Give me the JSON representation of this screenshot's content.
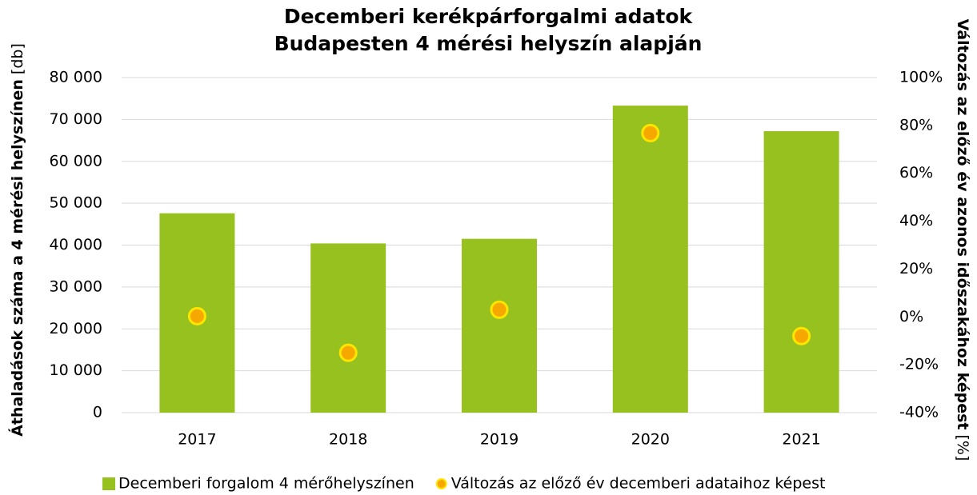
{
  "chart_data": {
    "type": "bar",
    "title": [
      "Decemberi kerékpárforgalmi adatok",
      "Budapesten 4 mérési helyszín alapján"
    ],
    "y_label": "Áthaladások száma a 4 mérési helyszínen",
    "y_label_unit": "[db]",
    "y2_label": "Változás az előző év azonos időszakához képest",
    "y2_label_unit": "[%]",
    "categories": [
      "2017",
      "2018",
      "2019",
      "2020",
      "2021"
    ],
    "series": [
      {
        "name": "Decemberi forgalom 4 mérőhelyszínen",
        "type": "bar",
        "color": "#97c11f",
        "values": [
          47600,
          40400,
          41500,
          73300,
          67200
        ]
      },
      {
        "name": "Változás az előző év decemberi adataihoz képest",
        "type": "scatter",
        "axis": "y2",
        "color": "#f7a800",
        "edge_color": "#ffe600",
        "values": [
          0.3,
          -15,
          3,
          76.8,
          -8
        ]
      }
    ],
    "ylim": [
      0,
      80000
    ],
    "yticks": [
      {
        "value": 0,
        "label": "0"
      },
      {
        "value": 10000,
        "label": "10 000"
      },
      {
        "value": 20000,
        "label": "20 000"
      },
      {
        "value": 30000,
        "label": "30 000"
      },
      {
        "value": 40000,
        "label": "40 000"
      },
      {
        "value": 50000,
        "label": "50 000"
      },
      {
        "value": 60000,
        "label": "60 000"
      },
      {
        "value": 70000,
        "label": "70 000"
      },
      {
        "value": 80000,
        "label": "80 000"
      }
    ],
    "y2lim": [
      -40,
      100
    ],
    "y2ticks": [
      {
        "value": -40,
        "label": "-40%"
      },
      {
        "value": -20,
        "label": "-20%"
      },
      {
        "value": 0,
        "label": "0%"
      },
      {
        "value": 20,
        "label": "20%"
      },
      {
        "value": 40,
        "label": "40%"
      },
      {
        "value": 60,
        "label": "60%"
      },
      {
        "value": 80,
        "label": "80%"
      },
      {
        "value": 100,
        "label": "100%"
      }
    ],
    "grid": true,
    "legend": "bottom"
  }
}
